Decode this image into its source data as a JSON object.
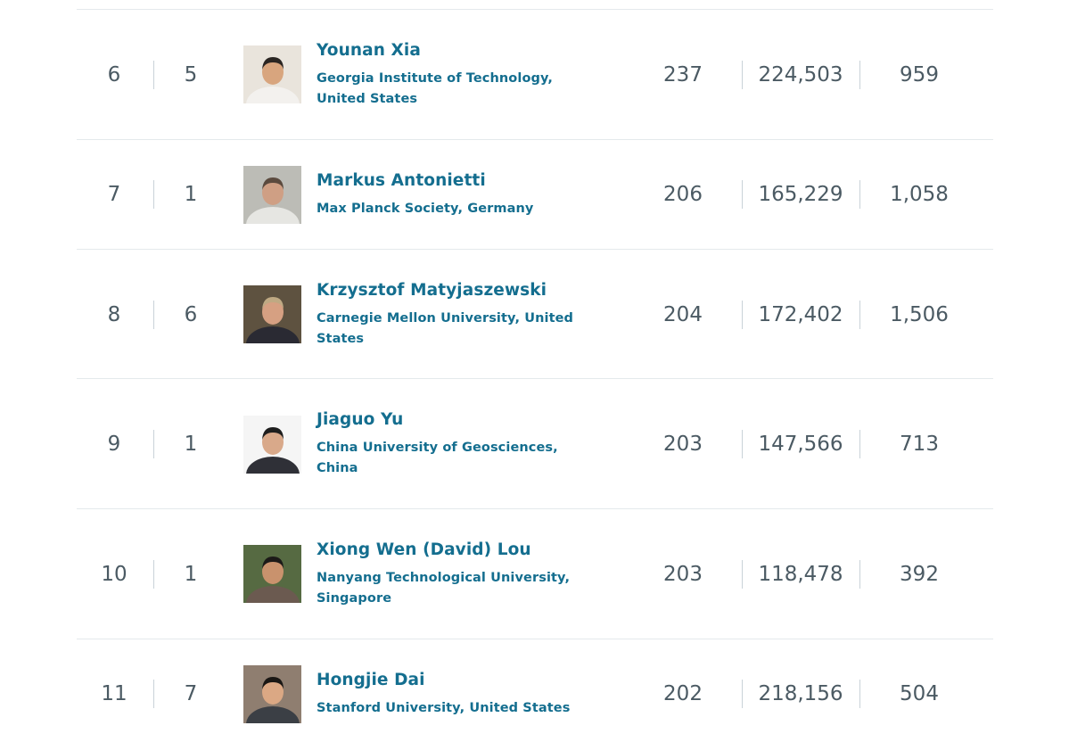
{
  "ranking": {
    "rows": [
      {
        "rank": "6",
        "prev_rank": "5",
        "name": "Younan Xia",
        "affiliation": "Georgia Institute of Technology, United States",
        "h_index": "237",
        "citations": "224,503",
        "documents": "959",
        "photo": {
          "bg": "#e9e4dc",
          "skin": "#d8a57e",
          "hair": "#2a2522",
          "shirt": "#f3f1ee"
        }
      },
      {
        "rank": "7",
        "prev_rank": "1",
        "name": "Markus Antonietti",
        "affiliation": "Max Planck Society, Germany",
        "h_index": "206",
        "citations": "165,229",
        "documents": "1,058",
        "photo": {
          "bg": "#bcbcb6",
          "skin": "#cf9f84",
          "hair": "#5b4a3e",
          "shirt": "#e6e6e2"
        }
      },
      {
        "rank": "8",
        "prev_rank": "6",
        "name": "Krzysztof Matyjaszewski",
        "affiliation": "Carnegie Mellon University, United States",
        "h_index": "204",
        "citations": "172,402",
        "documents": "1,506",
        "photo": {
          "bg": "#5e5240",
          "skin": "#d6a082",
          "hair": "#bfa983",
          "shirt": "#2a2a33"
        }
      },
      {
        "rank": "9",
        "prev_rank": "1",
        "name": "Jiaguo Yu",
        "affiliation": "China University of Geosciences, China",
        "h_index": "203",
        "citations": "147,566",
        "documents": "713",
        "photo": {
          "bg": "#f5f5f5",
          "skin": "#d9a98a",
          "hair": "#1e1e1e",
          "shirt": "#2f3037"
        }
      },
      {
        "rank": "10",
        "prev_rank": "1",
        "name": "Xiong Wen (David) Lou",
        "affiliation": "Nanyang Technological University, Singapore",
        "h_index": "203",
        "citations": "118,478",
        "documents": "392",
        "photo": {
          "bg": "#566a42",
          "skin": "#c9926d",
          "hair": "#1c1a18",
          "shirt": "#6b5a50"
        }
      },
      {
        "rank": "11",
        "prev_rank": "7",
        "name": "Hongjie Dai",
        "affiliation": "Stanford University, United States",
        "h_index": "202",
        "citations": "218,156",
        "documents": "504",
        "photo": {
          "bg": "#8f7e70",
          "skin": "#dba884",
          "hair": "#1a1714",
          "shirt": "#3b3f45"
        }
      }
    ]
  }
}
